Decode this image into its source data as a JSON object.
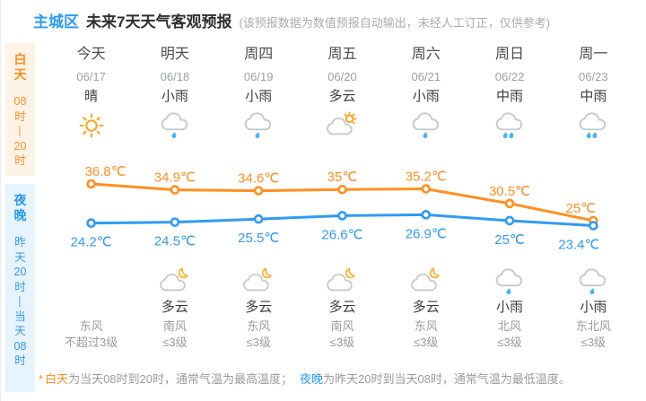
{
  "header": {
    "region": "主城区",
    "title": "未来7天天气客观预报",
    "disclaimer": "(该预报数据为数值预报自动输出，未经人工订正，仅供参考)"
  },
  "sidebar": {
    "day": {
      "label": "白天",
      "time": "08时—20时"
    },
    "night": {
      "label": "夜晚",
      "time": "昨天20时—当天08时"
    }
  },
  "days": [
    {
      "name": "今天",
      "date": "06/17",
      "condition": "晴",
      "day_icon": "sunny",
      "night_icon": "",
      "night_condition": "",
      "wind_dir": "东风",
      "wind_level": "不超过3级"
    },
    {
      "name": "明天",
      "date": "06/18",
      "condition": "小雨",
      "day_icon": "light-rain",
      "night_icon": "cloudy-night",
      "night_condition": "多云",
      "wind_dir": "南风",
      "wind_level": "≤3级"
    },
    {
      "name": "周四",
      "date": "06/19",
      "condition": "小雨",
      "day_icon": "light-rain",
      "night_icon": "cloudy-night",
      "night_condition": "多云",
      "wind_dir": "东风",
      "wind_level": "≤3级"
    },
    {
      "name": "周五",
      "date": "06/20",
      "condition": "多云",
      "day_icon": "cloudy-day",
      "night_icon": "cloudy-night",
      "night_condition": "多云",
      "wind_dir": "南风",
      "wind_level": "≤3级"
    },
    {
      "name": "周六",
      "date": "06/21",
      "condition": "小雨",
      "day_icon": "light-rain",
      "night_icon": "cloudy-night",
      "night_condition": "多云",
      "wind_dir": "东风",
      "wind_level": "≤3级"
    },
    {
      "name": "周日",
      "date": "06/22",
      "condition": "中雨",
      "day_icon": "moderate-rain",
      "night_icon": "light-rain",
      "night_condition": "小雨",
      "wind_dir": "北风",
      "wind_level": "≤3级"
    },
    {
      "name": "周一",
      "date": "06/23",
      "condition": "中雨",
      "day_icon": "moderate-rain",
      "night_icon": "light-rain",
      "night_condition": "小雨",
      "wind_dir": "东北风",
      "wind_level": "≤3级"
    }
  ],
  "chart_data": {
    "type": "line",
    "categories": [
      "06/17",
      "06/18",
      "06/19",
      "06/20",
      "06/21",
      "06/22",
      "06/23"
    ],
    "series": [
      {
        "name": "白天最高气温",
        "color": "#ff8f1f",
        "values": [
          36.8,
          34.9,
          34.6,
          35,
          35.2,
          30.5,
          25
        ]
      },
      {
        "name": "夜晚最低气温",
        "color": "#2f9bf4",
        "values": [
          24.2,
          24.5,
          25.5,
          26.6,
          26.9,
          25,
          23.4
        ]
      }
    ],
    "unit": "℃",
    "ylim": [
      23,
      38
    ],
    "grid": false,
    "legend": "none"
  },
  "footnote": {
    "star": "*",
    "day_term": "白天",
    "day_text": "为当天08时到20时，通常气温为最高温度；",
    "night_term": "夜晚",
    "night_text": "为昨天20时到当天08时，通常气温为最低温度。"
  },
  "colors": {
    "accent_orange": "#ff8f1f",
    "accent_blue": "#2b9af3",
    "day_strip_bg": "#fdf3e6",
    "night_strip_bg": "#e8f4fd",
    "cloud_stroke": "#c6cacc",
    "raindrop": "#45b6f5",
    "sun": "#ffa51f"
  }
}
